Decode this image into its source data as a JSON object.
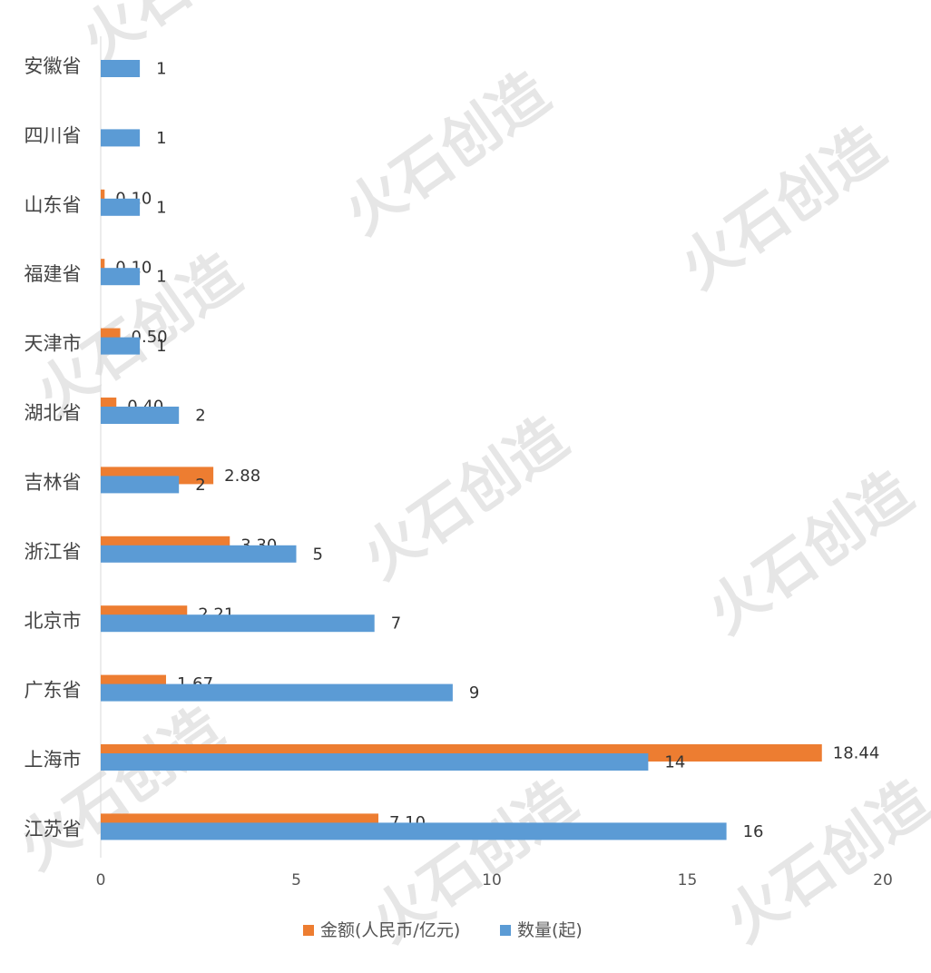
{
  "chart_data": {
    "type": "bar",
    "orientation": "horizontal",
    "categories": [
      "安徽省",
      "四川省",
      "山东省",
      "福建省",
      "天津市",
      "湖北省",
      "吉林省",
      "浙江省",
      "北京市",
      "广东省",
      "上海市",
      "江苏省"
    ],
    "series": [
      {
        "name": "金额(人民币/亿元)",
        "color": "#ed7d31",
        "values": [
          null,
          null,
          0.1,
          0.1,
          0.5,
          0.4,
          2.88,
          3.3,
          2.21,
          1.67,
          18.44,
          7.1
        ],
        "labels": [
          "",
          "",
          "0.10",
          "0.10",
          "0.50",
          "0.40",
          "2.88",
          "3.30",
          "2.21",
          "1.67",
          "18.44",
          "7.10"
        ]
      },
      {
        "name": "数量(起)",
        "color": "#5b9bd5",
        "values": [
          1,
          1,
          1,
          1,
          1,
          2,
          2,
          5,
          7,
          9,
          14,
          16
        ],
        "labels": [
          "1",
          "1",
          "1",
          "1",
          "1",
          "2",
          "2",
          "5",
          "7",
          "9",
          "14",
          "16"
        ]
      }
    ],
    "xlim": [
      0,
      20
    ],
    "xticks": [
      "0",
      "5",
      "10",
      "15",
      "20"
    ],
    "grid": false,
    "legend_position": "bottom"
  },
  "watermark_text": "火石创造"
}
